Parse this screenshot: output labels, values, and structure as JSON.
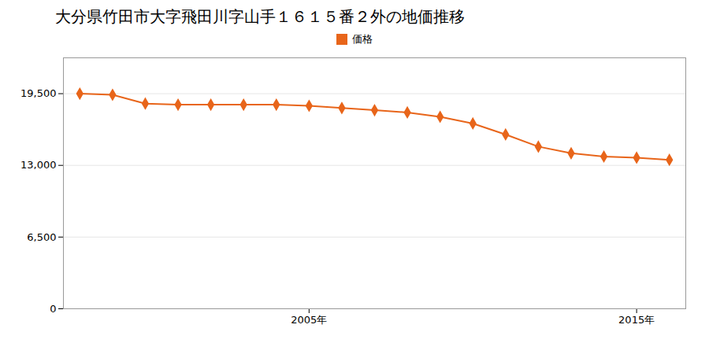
{
  "chart_data": {
    "type": "line",
    "title": "大分県竹田市大字飛田川字山手１６１５番２外の地価推移",
    "x": [
      1998,
      1999,
      2000,
      2001,
      2002,
      2003,
      2004,
      2005,
      2006,
      2007,
      2008,
      2009,
      2010,
      2011,
      2012,
      2013,
      2014,
      2015,
      2016
    ],
    "series": [
      {
        "name": "価格",
        "color": "#e8651a",
        "marker": "diamond",
        "values": [
          19500,
          19400,
          18600,
          18500,
          18500,
          18500,
          18500,
          18400,
          18200,
          18000,
          17800,
          17400,
          16800,
          15800,
          14700,
          14100,
          13800,
          13700,
          13500
        ]
      }
    ],
    "xlim": [
      1997.5,
      2016.5
    ],
    "xticks": [
      {
        "value": 2005,
        "label": "2005年"
      },
      {
        "value": 2015,
        "label": "2015年"
      }
    ],
    "ylim": [
      0,
      22750
    ],
    "yticks": [
      0,
      {
        "value": 6500,
        "label": "6,500"
      },
      {
        "value": 13000,
        "label": "13,000"
      },
      {
        "value": 19500,
        "label": "19,500"
      }
    ],
    "grid": "y",
    "legend": "top"
  }
}
